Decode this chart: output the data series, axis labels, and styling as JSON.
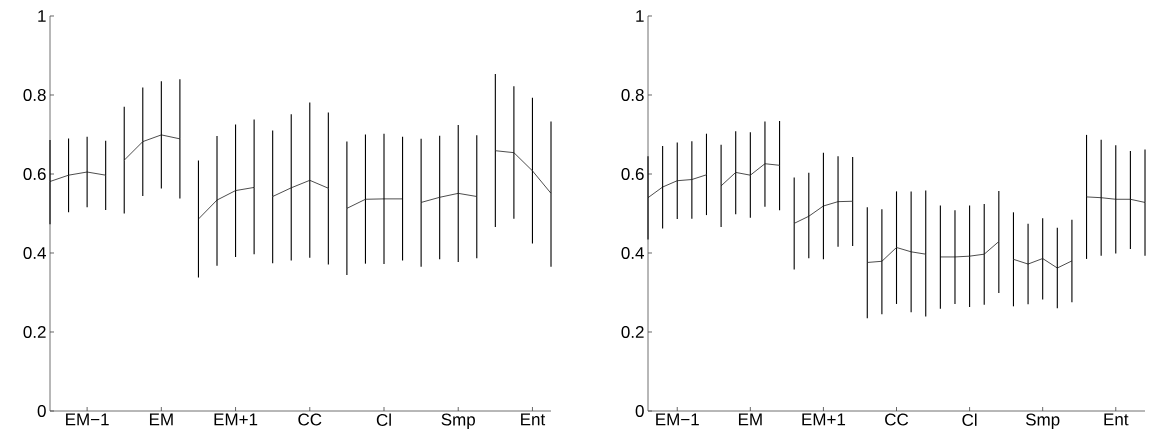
{
  "chart_data": [
    {
      "type": "line",
      "color": "#000000",
      "marker": "none",
      "line_style": "solid",
      "ylim": [
        0,
        1
      ],
      "categories": [
        null,
        null,
        "EM−1",
        null,
        null,
        null,
        "EM",
        null,
        null,
        null,
        "EM+1",
        null,
        null,
        null,
        "CC",
        null,
        null,
        null,
        "Cl",
        null,
        null,
        null,
        "Smp",
        null,
        null,
        null,
        "Ent",
        null
      ],
      "yticks": [
        0,
        0.2,
        0.4,
        0.6,
        0.8,
        1
      ],
      "series": [
        {
          "values": [
            0.581,
            0.597,
            0.605,
            0.597,
            null,
            null,
            null,
            null,
            null,
            null,
            null,
            null,
            null,
            null,
            null,
            null,
            null,
            null,
            null,
            null,
            null,
            null,
            null,
            null,
            null,
            null,
            null,
            null
          ],
          "errors": [
            [
              0.473,
              0.686
            ],
            [
              0.503,
              0.69
            ],
            [
              0.516,
              0.694
            ],
            [
              0.509,
              0.684
            ],
            null,
            null,
            null,
            null,
            null,
            null,
            null,
            null,
            null,
            null,
            null,
            null,
            null,
            null,
            null,
            null,
            null,
            null,
            null,
            null,
            null,
            null,
            null,
            null
          ]
        },
        {
          "values": [
            null,
            null,
            null,
            null,
            0.635,
            0.682,
            0.699,
            0.689,
            null,
            null,
            null,
            null,
            null,
            null,
            null,
            null,
            null,
            null,
            null,
            null,
            null,
            null,
            null,
            null,
            null,
            null,
            null,
            null
          ],
          "errors": [
            null,
            null,
            null,
            null,
            [
              0.5,
              0.77
            ],
            [
              0.544,
              0.819
            ],
            [
              0.563,
              0.835
            ],
            [
              0.538,
              0.84
            ],
            null,
            null,
            null,
            null,
            null,
            null,
            null,
            null,
            null,
            null,
            null,
            null,
            null,
            null,
            null,
            null,
            null,
            null,
            null,
            null
          ]
        },
        {
          "values": [
            null,
            null,
            null,
            null,
            null,
            null,
            null,
            null,
            0.486,
            0.534,
            0.558,
            0.566,
            null,
            null,
            null,
            null,
            null,
            null,
            null,
            null,
            null,
            null,
            null,
            null,
            null,
            null,
            null,
            null
          ],
          "errors": [
            null,
            null,
            null,
            null,
            null,
            null,
            null,
            null,
            [
              0.338,
              0.634
            ],
            [
              0.368,
              0.696
            ],
            [
              0.39,
              0.725
            ],
            [
              0.397,
              0.738
            ],
            null,
            null,
            null,
            null,
            null,
            null,
            null,
            null,
            null,
            null,
            null,
            null,
            null,
            null,
            null,
            null
          ]
        },
        {
          "values": [
            null,
            null,
            null,
            null,
            null,
            null,
            null,
            null,
            null,
            null,
            null,
            null,
            0.543,
            0.565,
            0.584,
            0.564,
            null,
            null,
            null,
            null,
            null,
            null,
            null,
            null,
            null,
            null,
            null,
            null
          ],
          "errors": [
            null,
            null,
            null,
            null,
            null,
            null,
            null,
            null,
            null,
            null,
            null,
            null,
            [
              0.374,
              0.71
            ],
            [
              0.381,
              0.751
            ],
            [
              0.388,
              0.781
            ],
            [
              0.371,
              0.756
            ],
            null,
            null,
            null,
            null,
            null,
            null,
            null,
            null,
            null,
            null,
            null,
            null
          ]
        },
        {
          "values": [
            null,
            null,
            null,
            null,
            null,
            null,
            null,
            null,
            null,
            null,
            null,
            null,
            null,
            null,
            null,
            null,
            0.513,
            0.536,
            0.537,
            0.537,
            null,
            null,
            null,
            null,
            null,
            null,
            null,
            null
          ],
          "errors": [
            null,
            null,
            null,
            null,
            null,
            null,
            null,
            null,
            null,
            null,
            null,
            null,
            null,
            null,
            null,
            null,
            [
              0.344,
              0.682
            ],
            [
              0.373,
              0.7
            ],
            [
              0.372,
              0.702
            ],
            [
              0.381,
              0.694
            ],
            null,
            null,
            null,
            null,
            null,
            null,
            null,
            null
          ]
        },
        {
          "values": [
            null,
            null,
            null,
            null,
            null,
            null,
            null,
            null,
            null,
            null,
            null,
            null,
            null,
            null,
            null,
            null,
            null,
            null,
            null,
            null,
            0.528,
            0.541,
            0.551,
            0.543,
            null,
            null,
            null,
            null
          ],
          "errors": [
            null,
            null,
            null,
            null,
            null,
            null,
            null,
            null,
            null,
            null,
            null,
            null,
            null,
            null,
            null,
            null,
            null,
            null,
            null,
            null,
            [
              0.365,
              0.689
            ],
            [
              0.384,
              0.697
            ],
            [
              0.377,
              0.724
            ],
            [
              0.387,
              0.698
            ],
            null,
            null,
            null,
            null
          ]
        },
        {
          "values": [
            null,
            null,
            null,
            null,
            null,
            null,
            null,
            null,
            null,
            null,
            null,
            null,
            null,
            null,
            null,
            null,
            null,
            null,
            null,
            null,
            null,
            null,
            null,
            null,
            0.659,
            0.654,
            0.608,
            0.551
          ],
          "errors": [
            null,
            null,
            null,
            null,
            null,
            null,
            null,
            null,
            null,
            null,
            null,
            null,
            null,
            null,
            null,
            null,
            null,
            null,
            null,
            null,
            null,
            null,
            null,
            null,
            [
              0.466,
              0.853
            ],
            [
              0.487,
              0.822
            ],
            [
              0.424,
              0.793
            ],
            [
              0.365,
              0.733
            ]
          ]
        }
      ]
    },
    {
      "type": "line",
      "color": "#000000",
      "marker": "none",
      "line_style": "solid",
      "ylim": [
        0,
        1
      ],
      "categories": [
        null,
        null,
        "EM−1",
        null,
        null,
        null,
        null,
        "EM",
        null,
        null,
        null,
        null,
        "EM+1",
        null,
        null,
        null,
        null,
        "CC",
        null,
        null,
        null,
        null,
        "Cl",
        null,
        null,
        null,
        null,
        "Smp",
        null,
        null,
        null,
        null,
        "Ent",
        null,
        null
      ],
      "yticks": [
        0,
        0.2,
        0.4,
        0.6,
        0.8,
        1
      ],
      "series": [
        {
          "values": [
            0.54,
            0.567,
            0.583,
            0.586,
            0.598,
            null,
            null,
            null,
            null,
            null,
            null,
            null,
            null,
            null,
            null,
            null,
            null,
            null,
            null,
            null,
            null,
            null,
            null,
            null,
            null,
            null,
            null,
            null,
            null,
            null,
            null,
            null,
            null,
            null,
            null
          ],
          "errors": [
            [
              0.434,
              0.645
            ],
            [
              0.462,
              0.671
            ],
            [
              0.486,
              0.68
            ],
            [
              0.487,
              0.683
            ],
            [
              0.496,
              0.702
            ],
            null,
            null,
            null,
            null,
            null,
            null,
            null,
            null,
            null,
            null,
            null,
            null,
            null,
            null,
            null,
            null,
            null,
            null,
            null,
            null,
            null,
            null,
            null,
            null,
            null,
            null,
            null,
            null,
            null,
            null
          ]
        },
        {
          "values": [
            null,
            null,
            null,
            null,
            null,
            0.57,
            0.604,
            0.597,
            0.626,
            0.622,
            null,
            null,
            null,
            null,
            null,
            null,
            null,
            null,
            null,
            null,
            null,
            null,
            null,
            null,
            null,
            null,
            null,
            null,
            null,
            null,
            null,
            null,
            null,
            null,
            null
          ],
          "errors": [
            null,
            null,
            null,
            null,
            null,
            [
              0.466,
              0.674
            ],
            [
              0.498,
              0.708
            ],
            [
              0.489,
              0.706
            ],
            [
              0.517,
              0.733
            ],
            [
              0.508,
              0.734
            ],
            null,
            null,
            null,
            null,
            null,
            null,
            null,
            null,
            null,
            null,
            null,
            null,
            null,
            null,
            null,
            null,
            null,
            null,
            null,
            null,
            null,
            null,
            null,
            null,
            null
          ]
        },
        {
          "values": [
            null,
            null,
            null,
            null,
            null,
            null,
            null,
            null,
            null,
            null,
            0.475,
            0.493,
            0.519,
            0.53,
            0.531,
            null,
            null,
            null,
            null,
            null,
            null,
            null,
            null,
            null,
            null,
            null,
            null,
            null,
            null,
            null,
            null,
            null,
            null,
            null,
            null
          ],
          "errors": [
            null,
            null,
            null,
            null,
            null,
            null,
            null,
            null,
            null,
            null,
            [
              0.358,
              0.591
            ],
            [
              0.387,
              0.603
            ],
            [
              0.384,
              0.654
            ],
            [
              0.416,
              0.645
            ],
            [
              0.418,
              0.643
            ],
            null,
            null,
            null,
            null,
            null,
            null,
            null,
            null,
            null,
            null,
            null,
            null,
            null,
            null,
            null,
            null,
            null,
            null,
            null,
            null
          ]
        },
        {
          "values": [
            null,
            null,
            null,
            null,
            null,
            null,
            null,
            null,
            null,
            null,
            null,
            null,
            null,
            null,
            null,
            0.376,
            0.379,
            0.414,
            0.403,
            0.397,
            null,
            null,
            null,
            null,
            null,
            null,
            null,
            null,
            null,
            null,
            null,
            null,
            null,
            null,
            null
          ],
          "errors": [
            null,
            null,
            null,
            null,
            null,
            null,
            null,
            null,
            null,
            null,
            null,
            null,
            null,
            null,
            null,
            [
              0.235,
              0.516
            ],
            [
              0.245,
              0.511
            ],
            [
              0.271,
              0.556
            ],
            [
              0.25,
              0.556
            ],
            [
              0.239,
              0.558
            ],
            null,
            null,
            null,
            null,
            null,
            null,
            null,
            null,
            null,
            null,
            null,
            null,
            null,
            null,
            null
          ]
        },
        {
          "values": [
            null,
            null,
            null,
            null,
            null,
            null,
            null,
            null,
            null,
            null,
            null,
            null,
            null,
            null,
            null,
            null,
            null,
            null,
            null,
            null,
            0.39,
            0.39,
            0.392,
            0.397,
            0.429,
            null,
            null,
            null,
            null,
            null,
            null,
            null,
            null,
            null,
            null
          ],
          "errors": [
            null,
            null,
            null,
            null,
            null,
            null,
            null,
            null,
            null,
            null,
            null,
            null,
            null,
            null,
            null,
            null,
            null,
            null,
            null,
            null,
            [
              0.259,
              0.52
            ],
            [
              0.271,
              0.508
            ],
            [
              0.263,
              0.52
            ],
            [
              0.269,
              0.524
            ],
            [
              0.299,
              0.557
            ],
            null,
            null,
            null,
            null,
            null,
            null,
            null,
            null,
            null,
            null
          ]
        },
        {
          "values": [
            null,
            null,
            null,
            null,
            null,
            null,
            null,
            null,
            null,
            null,
            null,
            null,
            null,
            null,
            null,
            null,
            null,
            null,
            null,
            null,
            null,
            null,
            null,
            null,
            null,
            0.384,
            0.372,
            0.386,
            0.362,
            0.38,
            null,
            null,
            null,
            null,
            null
          ],
          "errors": [
            null,
            null,
            null,
            null,
            null,
            null,
            null,
            null,
            null,
            null,
            null,
            null,
            null,
            null,
            null,
            null,
            null,
            null,
            null,
            null,
            null,
            null,
            null,
            null,
            null,
            [
              0.265,
              0.503
            ],
            [
              0.27,
              0.474
            ],
            [
              0.282,
              0.488
            ],
            [
              0.26,
              0.464
            ],
            [
              0.275,
              0.484
            ],
            null,
            null,
            null,
            null,
            null
          ]
        },
        {
          "values": [
            null,
            null,
            null,
            null,
            null,
            null,
            null,
            null,
            null,
            null,
            null,
            null,
            null,
            null,
            null,
            null,
            null,
            null,
            null,
            null,
            null,
            null,
            null,
            null,
            null,
            null,
            null,
            null,
            null,
            null,
            0.542,
            0.54,
            0.536,
            0.536,
            0.528
          ],
          "errors": [
            null,
            null,
            null,
            null,
            null,
            null,
            null,
            null,
            null,
            null,
            null,
            null,
            null,
            null,
            null,
            null,
            null,
            null,
            null,
            null,
            null,
            null,
            null,
            null,
            null,
            null,
            null,
            null,
            null,
            null,
            [
              0.385,
              0.699
            ],
            [
              0.393,
              0.687
            ],
            [
              0.399,
              0.673
            ],
            [
              0.41,
              0.658
            ],
            [
              0.393,
              0.662
            ]
          ]
        }
      ]
    }
  ]
}
